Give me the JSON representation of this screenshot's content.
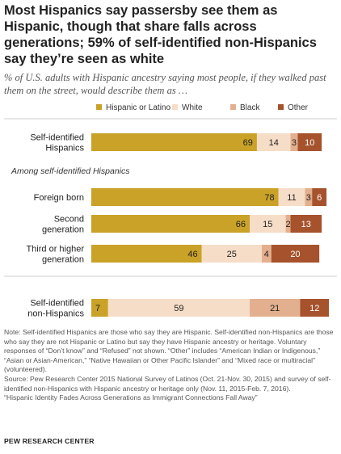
{
  "title": "Most Hispanics say passersby see them as Hispanic, though that share falls across generations; 59% of self-identified non-Hispanics say they’re seen as white",
  "subtitle": "% of U.S. adults with Hispanic ancestry saying most people, if they walked past them on the street, would describe them as …",
  "chart_data": {
    "type": "bar",
    "orientation": "horizontal",
    "stacked": true,
    "legend_position": "top",
    "section_label": "Among self-identified Hispanics",
    "categories": [
      [
        "Self-identified",
        "Hispanics"
      ],
      [
        "Foreign born"
      ],
      [
        "Second",
        "generation"
      ],
      [
        "Third or higher",
        "generation"
      ],
      [
        "Self-identified",
        "non-Hispanics"
      ]
    ],
    "series": [
      {
        "name": "Hispanic or Latino",
        "color": "#c9a227",
        "values": [
          69,
          78,
          66,
          46,
          7
        ]
      },
      {
        "name": "White",
        "color": "#f6ddc8",
        "values": [
          14,
          11,
          15,
          25,
          59
        ]
      },
      {
        "name": "Black",
        "color": "#e3b08f",
        "values": [
          3,
          3,
          2,
          4,
          21
        ]
      },
      {
        "name": "Other",
        "color": "#a6522c",
        "values": [
          10,
          6,
          13,
          20,
          12
        ]
      }
    ]
  },
  "notes": [
    "Note: Self-identified Hispanics are those who say they are Hispanic. Self-identified non-Hispanics are those who say they are not Hispanic or Latino but say they have Hispanic ancestry or heritage. Voluntary responses of “Don’t know” and “Refused” not shown. “Other” includes “American Indian or Indigenous,” “Asian or Asian-American,” “Native Hawaiian or Other Pacific Islander” and “Mixed race or multiracial” (volunteered).",
    "Source: Pew Research Center 2015 National Survey of Latinos (Oct. 21-Nov. 30, 2015) and survey of self-identified non-Hispanics with Hispanic ancestry or heritage only (Nov. 11, 2015-Feb. 7, 2016).",
    "“Hispanic Identity Fades Across Generations as Immigrant Connections Fall Away”"
  ],
  "source_org": "PEW RESEARCH CENTER"
}
